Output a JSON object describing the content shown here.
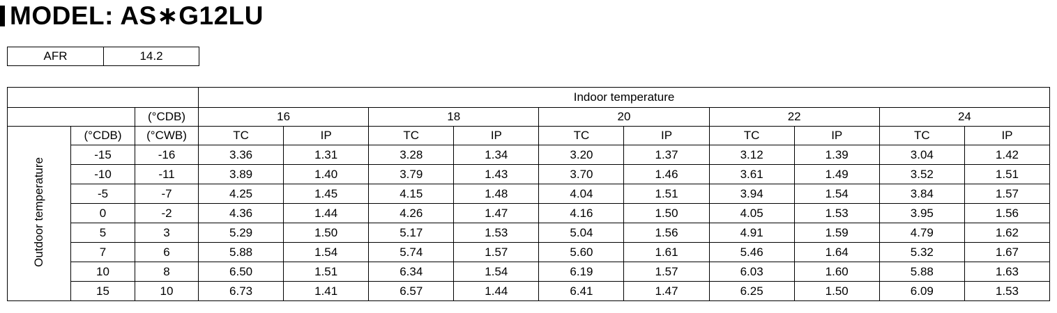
{
  "header": {
    "title": "MODEL: AS∗G12LU"
  },
  "afr": {
    "label": "AFR",
    "value": "14.2"
  },
  "table": {
    "indoor_label": "Indoor temperature",
    "indoor_unit": "(°CDB)",
    "outdoor_label": "Outdoor temperature",
    "outdoor_units": [
      "(°CDB)",
      "(°CWB)"
    ],
    "indoor_temps": [
      "16",
      "18",
      "20",
      "22",
      "24"
    ],
    "subheaders": [
      "TC",
      "IP"
    ],
    "rows": [
      [
        "-15",
        "-16",
        "3.36",
        "1.31",
        "3.28",
        "1.34",
        "3.20",
        "1.37",
        "3.12",
        "1.39",
        "3.04",
        "1.42"
      ],
      [
        "-10",
        "-11",
        "3.89",
        "1.40",
        "3.79",
        "1.43",
        "3.70",
        "1.46",
        "3.61",
        "1.49",
        "3.52",
        "1.51"
      ],
      [
        "-5",
        "-7",
        "4.25",
        "1.45",
        "4.15",
        "1.48",
        "4.04",
        "1.51",
        "3.94",
        "1.54",
        "3.84",
        "1.57"
      ],
      [
        "0",
        "-2",
        "4.36",
        "1.44",
        "4.26",
        "1.47",
        "4.16",
        "1.50",
        "4.05",
        "1.53",
        "3.95",
        "1.56"
      ],
      [
        "5",
        "3",
        "5.29",
        "1.50",
        "5.17",
        "1.53",
        "5.04",
        "1.56",
        "4.91",
        "1.59",
        "4.79",
        "1.62"
      ],
      [
        "7",
        "6",
        "5.88",
        "1.54",
        "5.74",
        "1.57",
        "5.60",
        "1.61",
        "5.46",
        "1.64",
        "5.32",
        "1.67"
      ],
      [
        "10",
        "8",
        "6.50",
        "1.51",
        "6.34",
        "1.54",
        "6.19",
        "1.57",
        "6.03",
        "1.60",
        "5.88",
        "1.63"
      ],
      [
        "15",
        "10",
        "6.73",
        "1.41",
        "6.57",
        "1.44",
        "6.41",
        "1.47",
        "6.25",
        "1.50",
        "6.09",
        "1.53"
      ]
    ]
  }
}
